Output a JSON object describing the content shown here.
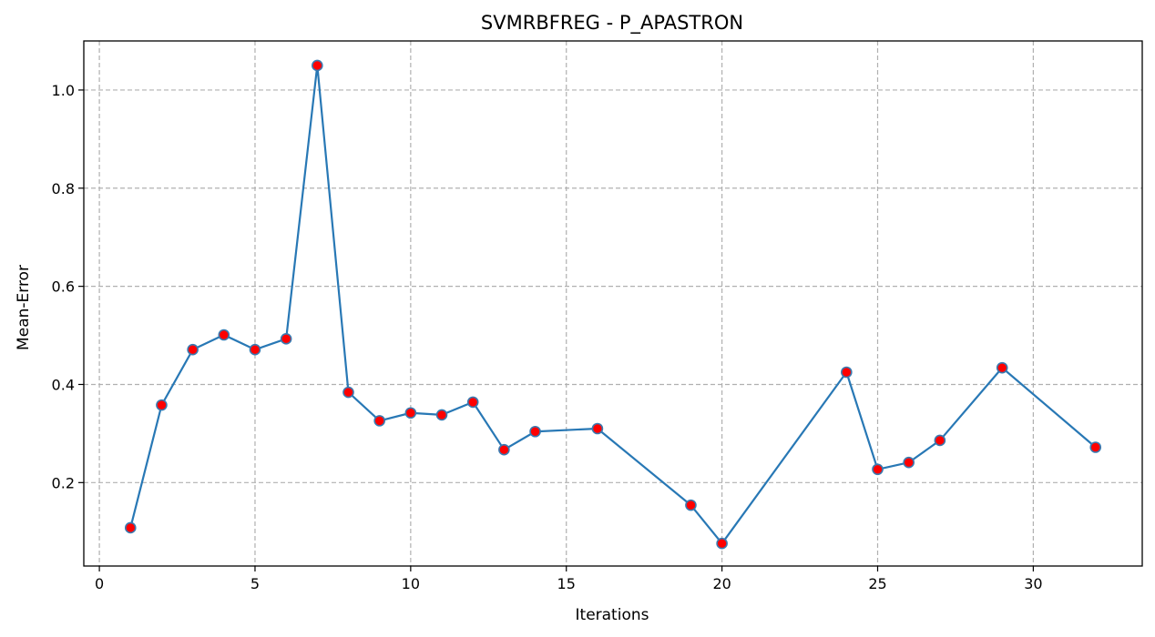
{
  "chart_data": {
    "type": "line",
    "title": "SVMRBFREG - P_APASTRON",
    "xlabel": "Iterations",
    "ylabel": "Mean-Error",
    "xlim": [
      -0.5,
      33.5
    ],
    "ylim": [
      0.03,
      1.1
    ],
    "xticks": [
      0,
      5,
      10,
      15,
      20,
      25,
      30
    ],
    "yticks": [
      0.2,
      0.4,
      0.6,
      0.8,
      1.0
    ],
    "xtick_labels": [
      "0",
      "5",
      "10",
      "15",
      "20",
      "25",
      "30"
    ],
    "ytick_labels": [
      "0.2",
      "0.4",
      "0.6",
      "0.8",
      "1.0"
    ],
    "grid": true,
    "line_color": "#2878b5",
    "marker_color": "#ff0000",
    "marker_edge_color": "#3a7ab0",
    "series": [
      {
        "x": [
          1,
          2,
          3,
          4,
          5,
          6,
          7,
          8,
          9,
          10,
          11,
          12,
          13,
          14,
          16,
          19,
          20,
          24,
          25,
          26,
          27,
          29,
          32
        ],
        "values": [
          0.108,
          0.358,
          0.471,
          0.501,
          0.471,
          0.493,
          1.05,
          0.384,
          0.326,
          0.342,
          0.338,
          0.364,
          0.267,
          0.304,
          0.31,
          0.154,
          0.076,
          0.425,
          0.227,
          0.241,
          0.286,
          0.434,
          0.272
        ]
      }
    ]
  }
}
